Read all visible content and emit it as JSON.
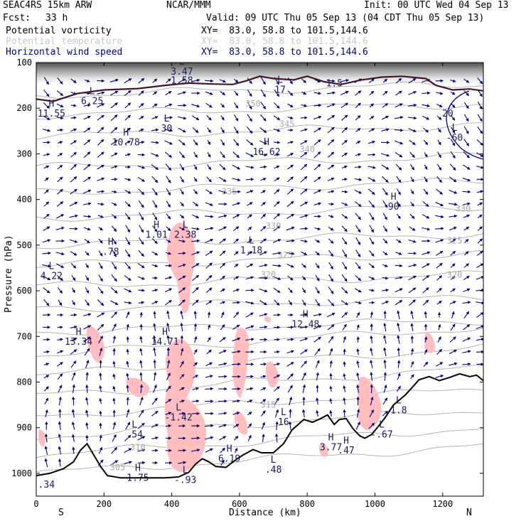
{
  "header": {
    "model": "SEAC4RS 15km ARW",
    "org": "NCAR/MMM",
    "init": "Init: 00 UTC Wed 04 Sep 13",
    "fcst_label": "Fcst:",
    "fcst_value": "33 h",
    "valid": "Valid: 09 UTC Thu 05 Sep 13 (04 CDT Thu 05 Sep 13)",
    "fields": [
      {
        "name": "Potential vorticity",
        "xy": "XY=  83.0, 58.8 to 101.5,144.6",
        "color": "#000000"
      },
      {
        "name": "Potential temperature",
        "xy": "XY=  83.0, 58.8 to 101.5,144.6",
        "color": "#c8c8c8"
      },
      {
        "name": "Horizontal wind speed",
        "xy": "XY=  83.0, 58.8 to 101.5,144.6",
        "color": "#000080"
      }
    ]
  },
  "chart_data": {
    "type": "cross-section",
    "ylabel": "Pressure (hPa)",
    "xlabel": "Distance (km)",
    "x_range": [
      0,
      1320
    ],
    "y_range": [
      1050,
      100
    ],
    "x_ticks": [
      0,
      200,
      400,
      600,
      800,
      1000,
      1200
    ],
    "y_ticks": [
      100,
      200,
      300,
      400,
      500,
      600,
      700,
      800,
      900,
      1000
    ],
    "x_end_labels": {
      "left": "S",
      "right": "N"
    },
    "theta_labels": [
      {
        "text": "350",
        "x": 640,
        "p": 190
      },
      {
        "text": "345",
        "x": 740,
        "p": 235
      },
      {
        "text": "340",
        "x": 800,
        "p": 290
      },
      {
        "text": "335",
        "x": 570,
        "p": 383
      },
      {
        "text": "330",
        "x": 700,
        "p": 458
      },
      {
        "text": "325",
        "x": 735,
        "p": 522
      },
      {
        "text": "320",
        "x": 685,
        "p": 565
      },
      {
        "text": "315",
        "x": 685,
        "p": 850
      },
      {
        "text": "310",
        "x": 300,
        "p": 943
      },
      {
        "text": "305",
        "x": 240,
        "p": 987
      },
      {
        "text": "330",
        "x": 1260,
        "p": 420
      },
      {
        "text": "325",
        "x": 1235,
        "p": 490
      },
      {
        "text": "320",
        "x": 1235,
        "p": 565
      }
    ],
    "hl_labels": [
      {
        "letter": "L",
        "value": "3.47",
        "x": 430,
        "p": 120
      },
      {
        "letter": "",
        "value": "1.58",
        "x": 430,
        "p": 140
      },
      {
        "letter": "L",
        "value": "17",
        "x": 720,
        "p": 160
      },
      {
        "letter": "",
        "value": "1.5",
        "x": 880,
        "p": 146
      },
      {
        "letter": "L",
        "value": "6.25",
        "x": 165,
        "p": 185
      },
      {
        "letter": "H",
        "value": "11.55",
        "x": 45,
        "p": 212
      },
      {
        "letter": "L",
        "value": "30",
        "x": 385,
        "p": 245
      },
      {
        "letter": "H",
        "value": "10.78",
        "x": 265,
        "p": 275
      },
      {
        "letter": "H",
        "value": "16.62",
        "x": 680,
        "p": 296
      },
      {
        "letter": "H",
        "value": "90",
        "x": 1055,
        "p": 416
      },
      {
        "letter": "H",
        "value": "1.01",
        "x": 355,
        "p": 478
      },
      {
        "letter": "L",
        "value": "2.38",
        "x": 440,
        "p": 478
      },
      {
        "letter": "H",
        "value": ".78",
        "x": 220,
        "p": 515
      },
      {
        "letter": "L",
        "value": "1.18",
        "x": 635,
        "p": 512
      },
      {
        "letter": "L",
        "value": "4.22",
        "x": 45,
        "p": 568
      },
      {
        "letter": "H",
        "value": "12.48",
        "x": 795,
        "p": 674
      },
      {
        "letter": "H",
        "value": "13.34",
        "x": 125,
        "p": 712
      },
      {
        "letter": "H",
        "value": "14.71",
        "x": 380,
        "p": 712
      },
      {
        "letter": "L",
        "value": "-1.42",
        "x": 420,
        "p": 878
      },
      {
        "letter": "L",
        "value": "16",
        "x": 730,
        "p": 888
      },
      {
        "letter": "L",
        "value": "1.8",
        "x": 1070,
        "p": 862
      },
      {
        "letter": "L",
        "value": ".54",
        "x": 290,
        "p": 915
      },
      {
        "letter": "L",
        "value": "-.67",
        "x": 1020,
        "p": 915
      },
      {
        "letter": "H",
        "value": "3.77",
        "x": 870,
        "p": 943
      },
      {
        "letter": "H",
        "value": ".47",
        "x": 915,
        "p": 950
      },
      {
        "letter": "H",
        "value": "6.19",
        "x": 570,
        "p": 968
      },
      {
        "letter": "L",
        "value": ".48",
        "x": 700,
        "p": 992
      },
      {
        "letter": "H",
        "value": "1.75",
        "x": 300,
        "p": 1010
      },
      {
        "letter": "L",
        "value": "-.93",
        "x": 440,
        "p": 1015
      },
      {
        "letter": "",
        "value": ".34",
        "x": 30,
        "p": 1025
      },
      {
        "letter": "",
        "value": "20",
        "x": 1215,
        "p": 212
      },
      {
        "letter": "L",
        "value": "-60",
        "x": 1235,
        "p": 265
      }
    ],
    "terrain": [
      [
        0,
        1005
      ],
      [
        40,
        1000
      ],
      [
        80,
        990
      ],
      [
        110,
        975
      ],
      [
        130,
        950
      ],
      [
        150,
        935
      ],
      [
        170,
        960
      ],
      [
        190,
        985
      ],
      [
        210,
        1005
      ],
      [
        250,
        1010
      ],
      [
        300,
        1010
      ],
      [
        380,
        1010
      ],
      [
        420,
        1008
      ],
      [
        450,
        998
      ],
      [
        470,
        980
      ],
      [
        490,
        968
      ],
      [
        510,
        975
      ],
      [
        530,
        985
      ],
      [
        560,
        987
      ],
      [
        590,
        970
      ],
      [
        610,
        960
      ],
      [
        640,
        948
      ],
      [
        665,
        955
      ],
      [
        700,
        955
      ],
      [
        730,
        935
      ],
      [
        755,
        905
      ],
      [
        790,
        882
      ],
      [
        815,
        888
      ],
      [
        840,
        880
      ],
      [
        860,
        872
      ],
      [
        880,
        893
      ],
      [
        895,
        882
      ],
      [
        915,
        880
      ],
      [
        935,
        902
      ],
      [
        955,
        918
      ],
      [
        970,
        923
      ],
      [
        990,
        915
      ],
      [
        1010,
        897
      ],
      [
        1030,
        878
      ],
      [
        1055,
        850
      ],
      [
        1090,
        828
      ],
      [
        1130,
        795
      ],
      [
        1160,
        788
      ],
      [
        1190,
        797
      ],
      [
        1220,
        790
      ],
      [
        1250,
        782
      ],
      [
        1280,
        788
      ],
      [
        1300,
        785
      ],
      [
        1320,
        797
      ]
    ],
    "tropopause_pv": [
      [
        0,
        180
      ],
      [
        50,
        185
      ],
      [
        120,
        168
      ],
      [
        200,
        160
      ],
      [
        300,
        157
      ],
      [
        380,
        150
      ],
      [
        450,
        145
      ],
      [
        520,
        147
      ],
      [
        580,
        148
      ],
      [
        620,
        140
      ],
      [
        660,
        130
      ],
      [
        700,
        135
      ],
      [
        760,
        138
      ],
      [
        800,
        130
      ],
      [
        850,
        142
      ],
      [
        900,
        148
      ],
      [
        960,
        138
      ],
      [
        1020,
        132
      ],
      [
        1080,
        130
      ],
      [
        1150,
        135
      ],
      [
        1180,
        150
      ],
      [
        1230,
        160
      ],
      [
        1280,
        158
      ],
      [
        1320,
        162
      ]
    ],
    "legend": "none"
  }
}
